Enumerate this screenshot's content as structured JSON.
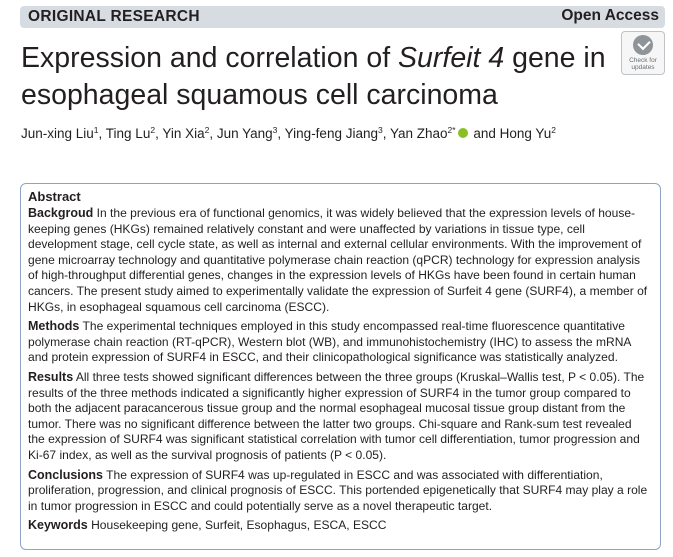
{
  "header": {
    "label": "ORIGINAL RESEARCH",
    "open_access": "Open Access"
  },
  "title": {
    "part1": "Expression and correlation of ",
    "gene": "Surfeit 4",
    "part2": " gene in esophageal squamous cell carcinoma"
  },
  "check_updates": {
    "line1": "Check for",
    "line2": "updates"
  },
  "authors": [
    {
      "name": "Jun-xing Liu",
      "aff": "1"
    },
    {
      "name": "Ting Lu",
      "aff": "2"
    },
    {
      "name": "Yin Xia",
      "aff": "2"
    },
    {
      "name": "Jun Yang",
      "aff": "3"
    },
    {
      "name": "Ying-feng Jiang",
      "aff": "3"
    },
    {
      "name": "Yan Zhao",
      "aff": "2*"
    },
    {
      "name": "Hong Yu",
      "aff": "2"
    }
  ],
  "authors_and": "and",
  "abstract": {
    "heading": "Abstract",
    "background_label": "Backgroud",
    "background_text": "In the previous era of functional genomics, it was widely believed that the expression levels of house-keeping genes (HKGs) remained relatively constant and were unaffected by variations in tissue type, cell development stage, cell cycle state, as well as internal and external cellular environments. With the improvement of gene microarray technology and quantitative polymerase chain reaction (qPCR) technology for expression analysis of high-throughput differential genes, changes in the expression levels of HKGs have been found in certain human cancers. The present study aimed to experimentally validate the expression of Surfeit 4 gene (SURF4), a member of HKGs, in esophageal squamous cell carcinoma (ESCC).",
    "methods_label": "Methods",
    "methods_text": "The experimental techniques employed in this study encompassed real-time fluorescence quantitative polymerase chain reaction (RT-qPCR), Western blot (WB), and immunohistochemistry (IHC) to assess the mRNA and protein expression of SURF4 in ESCC, and their clinicopathological significance was statistically analyzed.",
    "results_label": "Results",
    "results_text": "All three tests showed significant differences between the three groups (Kruskal–Wallis test, P < 0.05). The results of the three methods indicated a significantly higher expression of SURF4 in the tumor group compared to both the adjacent paracancerous tissue group and the normal esophageal mucosal tissue group distant from the tumor. There was no significant difference between the latter two groups. Chi-square and Rank-sum test revealed the expression of SURF4 was significant statistical correlation with tumor cell differentiation, tumor progression and Ki-67 index, as well as the survival prognosis of patients (P < 0.05).",
    "conclusions_label": "Conclusions",
    "conclusions_text": "The expression of SURF4 was up-regulated in ESCC and was associated with differentiation, proliferation, progression, and clinical prognosis of ESCC. This portended epigenetically that SURF4 may play a role in tumor progression in ESCC and could potentially serve as a novel therapeutic target.",
    "keywords_label": "Keywords",
    "keywords_text": "Housekeeping gene, Surfeit, Esophagus, ESCA, ESCC"
  }
}
